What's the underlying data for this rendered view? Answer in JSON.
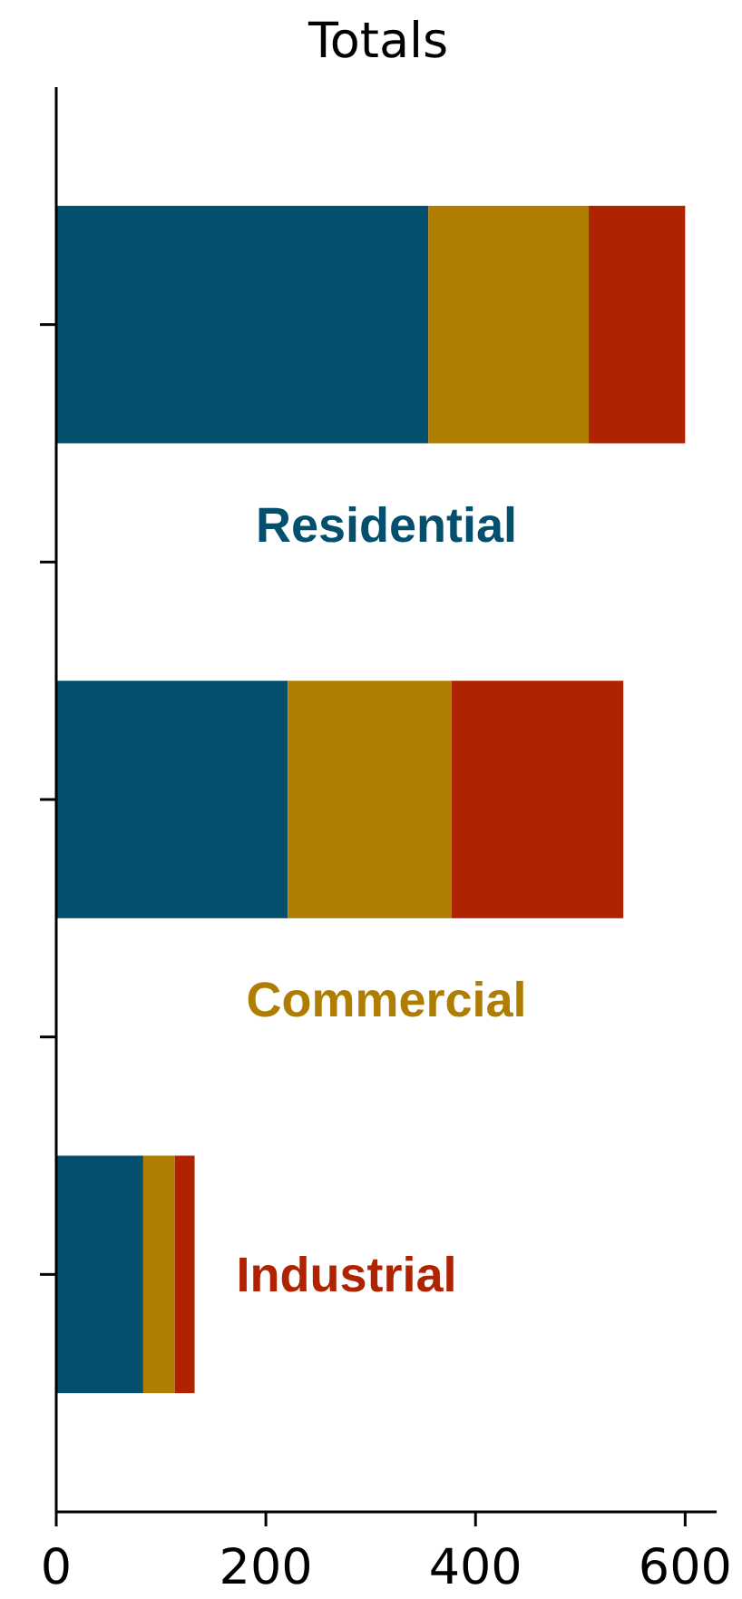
{
  "chart_data": {
    "type": "bar",
    "title": "Totals",
    "orientation": "horizontal",
    "stacked": true,
    "categories": [
      null,
      null,
      null
    ],
    "series": [
      {
        "name": "Residential",
        "color": "#054f6e",
        "values": [
          355,
          221,
          83
        ]
      },
      {
        "name": "Commercial",
        "color": "#af7d00",
        "values": [
          153,
          156,
          30
        ]
      },
      {
        "name": "Industrial",
        "color": "#af2300",
        "values": [
          92,
          164,
          19
        ]
      }
    ],
    "xlim": [
      0,
      630
    ],
    "xticks": [
      0,
      200,
      400,
      600
    ]
  }
}
